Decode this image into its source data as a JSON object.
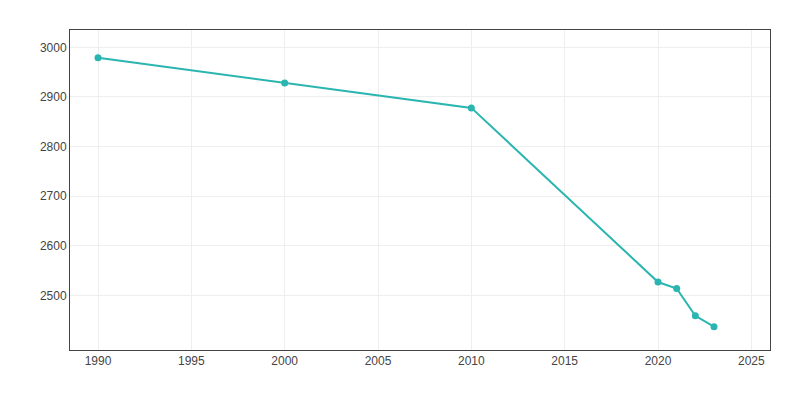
{
  "chart_data": {
    "type": "line",
    "x": [
      1990,
      2000,
      2010,
      2020,
      2021,
      2022,
      2023
    ],
    "values": [
      2979,
      2928,
      2878,
      2527,
      2514,
      2459,
      2437
    ],
    "color": "#2ab5b0",
    "marker": "circle",
    "xlim": [
      1988.5,
      2026
    ],
    "ylim": [
      2390,
      3035
    ],
    "xticks": [
      1990,
      1995,
      2000,
      2005,
      2010,
      2015,
      2020,
      2025
    ],
    "yticks": [
      2500,
      2600,
      2700,
      2800,
      2900,
      3000
    ],
    "grid": true
  }
}
